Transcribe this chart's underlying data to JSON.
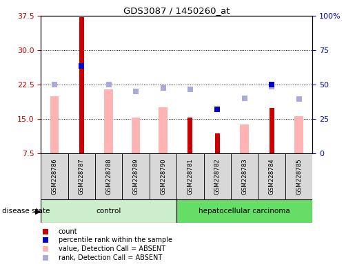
{
  "title": "GDS3087 / 1450260_at",
  "samples": [
    "GSM228786",
    "GSM228787",
    "GSM228788",
    "GSM228789",
    "GSM228790",
    "GSM228781",
    "GSM228782",
    "GSM228783",
    "GSM228784",
    "GSM228785"
  ],
  "left_ylim": [
    7.5,
    37.5
  ],
  "left_yticks": [
    7.5,
    15.0,
    22.5,
    30.0,
    37.5
  ],
  "right_ylim": [
    0,
    100
  ],
  "right_yticks": [
    0,
    25,
    50,
    75,
    100
  ],
  "right_yticklabels": [
    "0",
    "25",
    "50",
    "75",
    "100%"
  ],
  "count_values": [
    null,
    37.2,
    null,
    null,
    null,
    15.3,
    11.8,
    null,
    17.3,
    null
  ],
  "percentile_rank_values": [
    null,
    26.5,
    null,
    null,
    null,
    null,
    17.0,
    null,
    22.5,
    null
  ],
  "value_absent": [
    20.0,
    null,
    21.5,
    15.2,
    17.5,
    null,
    null,
    13.8,
    null,
    15.5
  ],
  "rank_absent": [
    22.5,
    null,
    22.5,
    21.0,
    21.8,
    21.5,
    null,
    19.5,
    22.0,
    19.3
  ],
  "count_color": "#cc0000",
  "percentile_color": "#0000cc",
  "value_absent_color": "#ffb3b3",
  "rank_absent_color": "#aaaadd",
  "control_bg": "#cceecc",
  "cancer_bg": "#66dd66",
  "bg_gray": "#d8d8d8",
  "left_tick_color": "#cc0000",
  "right_tick_color": "#0000cc"
}
